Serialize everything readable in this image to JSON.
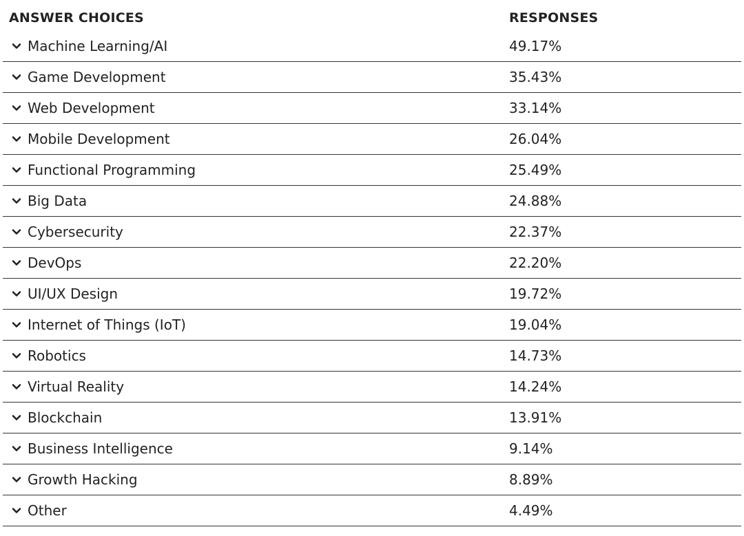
{
  "header": {
    "answer_choices": "ANSWER CHOICES",
    "responses": "RESPONSES"
  },
  "rows": [
    {
      "label": "Machine Learning/AI",
      "value": "49.17%"
    },
    {
      "label": "Game Development",
      "value": "35.43%"
    },
    {
      "label": "Web Development",
      "value": "33.14%"
    },
    {
      "label": "Mobile Development",
      "value": "26.04%"
    },
    {
      "label": "Functional Programming",
      "value": "25.49%"
    },
    {
      "label": "Big Data",
      "value": "24.88%"
    },
    {
      "label": "Cybersecurity",
      "value": "22.37%"
    },
    {
      "label": "DevOps",
      "value": "22.20%"
    },
    {
      "label": "UI/UX Design",
      "value": "19.72%"
    },
    {
      "label": "Internet of Things (IoT)",
      "value": "19.04%"
    },
    {
      "label": "Robotics",
      "value": "14.73%"
    },
    {
      "label": "Virtual Reality",
      "value": "14.24%"
    },
    {
      "label": "Blockchain",
      "value": "13.91%"
    },
    {
      "label": "Business Intelligence",
      "value": "9.14%"
    },
    {
      "label": "Growth Hacking",
      "value": "8.89%"
    },
    {
      "label": "Other",
      "value": "4.49%"
    }
  ],
  "icons": {
    "row_toggle": "chevron-down-icon"
  },
  "colors": {
    "text": "#222222",
    "divider": "#333333"
  }
}
